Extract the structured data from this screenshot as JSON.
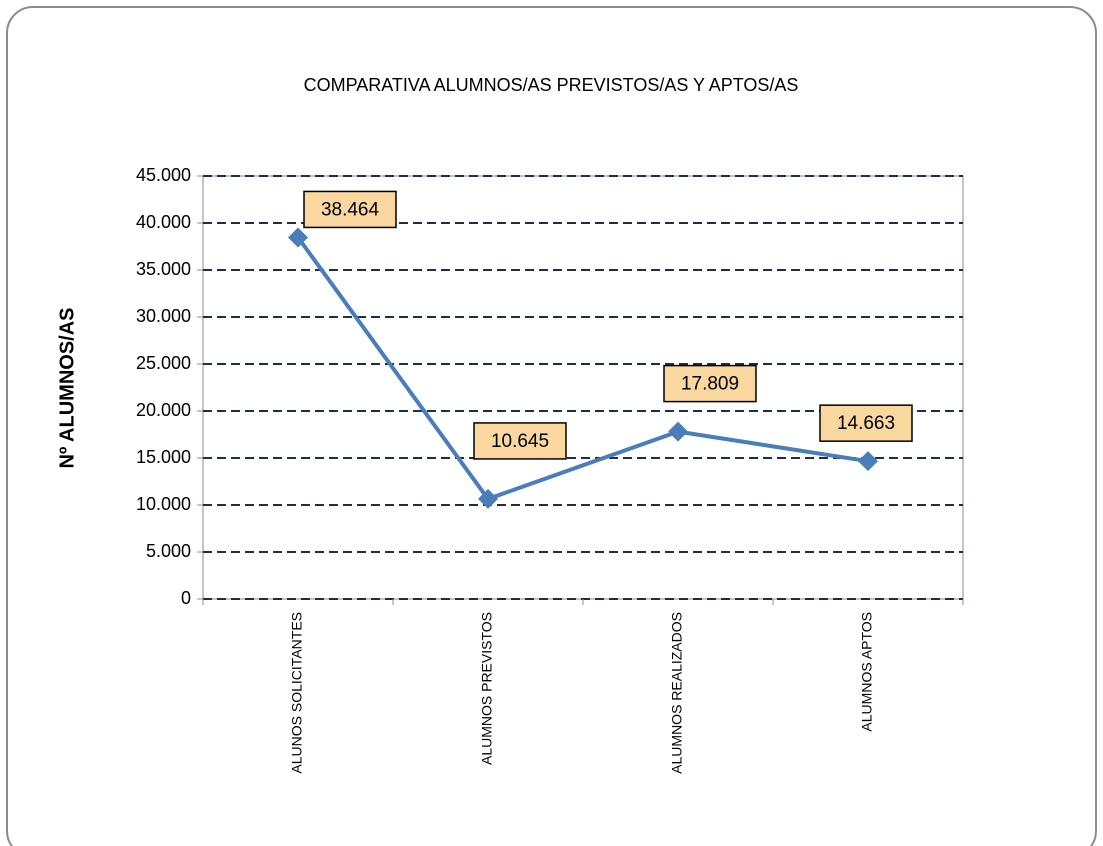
{
  "chart_data": {
    "type": "line",
    "title": "COMPARATIVA ALUMNOS/AS PREVISTOS/AS Y APTOS/AS",
    "y_label": "Nº ALUMNOS/AS",
    "categories": [
      "ALUNOS SOLICITANTES",
      "ALUMNOS PREVISTOS",
      "ALUMNOS REALIZADOS",
      "ALUMNOS APTOS"
    ],
    "values": [
      38464,
      10645,
      17809,
      14663
    ],
    "value_labels": [
      "38.464",
      "10.645",
      "17.809",
      "14.663"
    ],
    "color": "#4a7ebb",
    "ylim": [
      0,
      45000
    ],
    "yticks": [
      0,
      {
        "value": 5000,
        "label": "5.000"
      },
      {
        "value": 10000,
        "label": "10.000"
      },
      {
        "value": 15000,
        "label": "15.000"
      },
      {
        "value": 20000,
        "label": "20.000"
      },
      {
        "value": 25000,
        "label": "25.000"
      },
      {
        "value": 30000,
        "label": "30.000"
      },
      {
        "value": 35000,
        "label": "35.000"
      },
      {
        "value": 40000,
        "label": "40.000"
      },
      {
        "value": 45000,
        "label": "45.000"
      }
    ],
    "grid": true
  }
}
